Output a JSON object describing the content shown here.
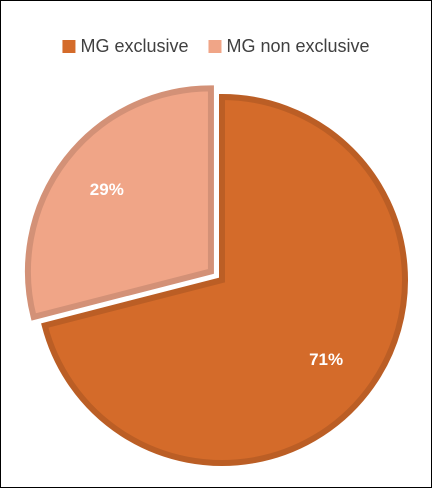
{
  "chart_data": {
    "type": "pie",
    "categories": [
      "MG exclusive",
      "MG non exclusive"
    ],
    "values": [
      71,
      29
    ],
    "value_labels": [
      "71%",
      "29%"
    ],
    "colors": [
      "#d46b2a",
      "#f0a587"
    ],
    "legend": "top"
  }
}
